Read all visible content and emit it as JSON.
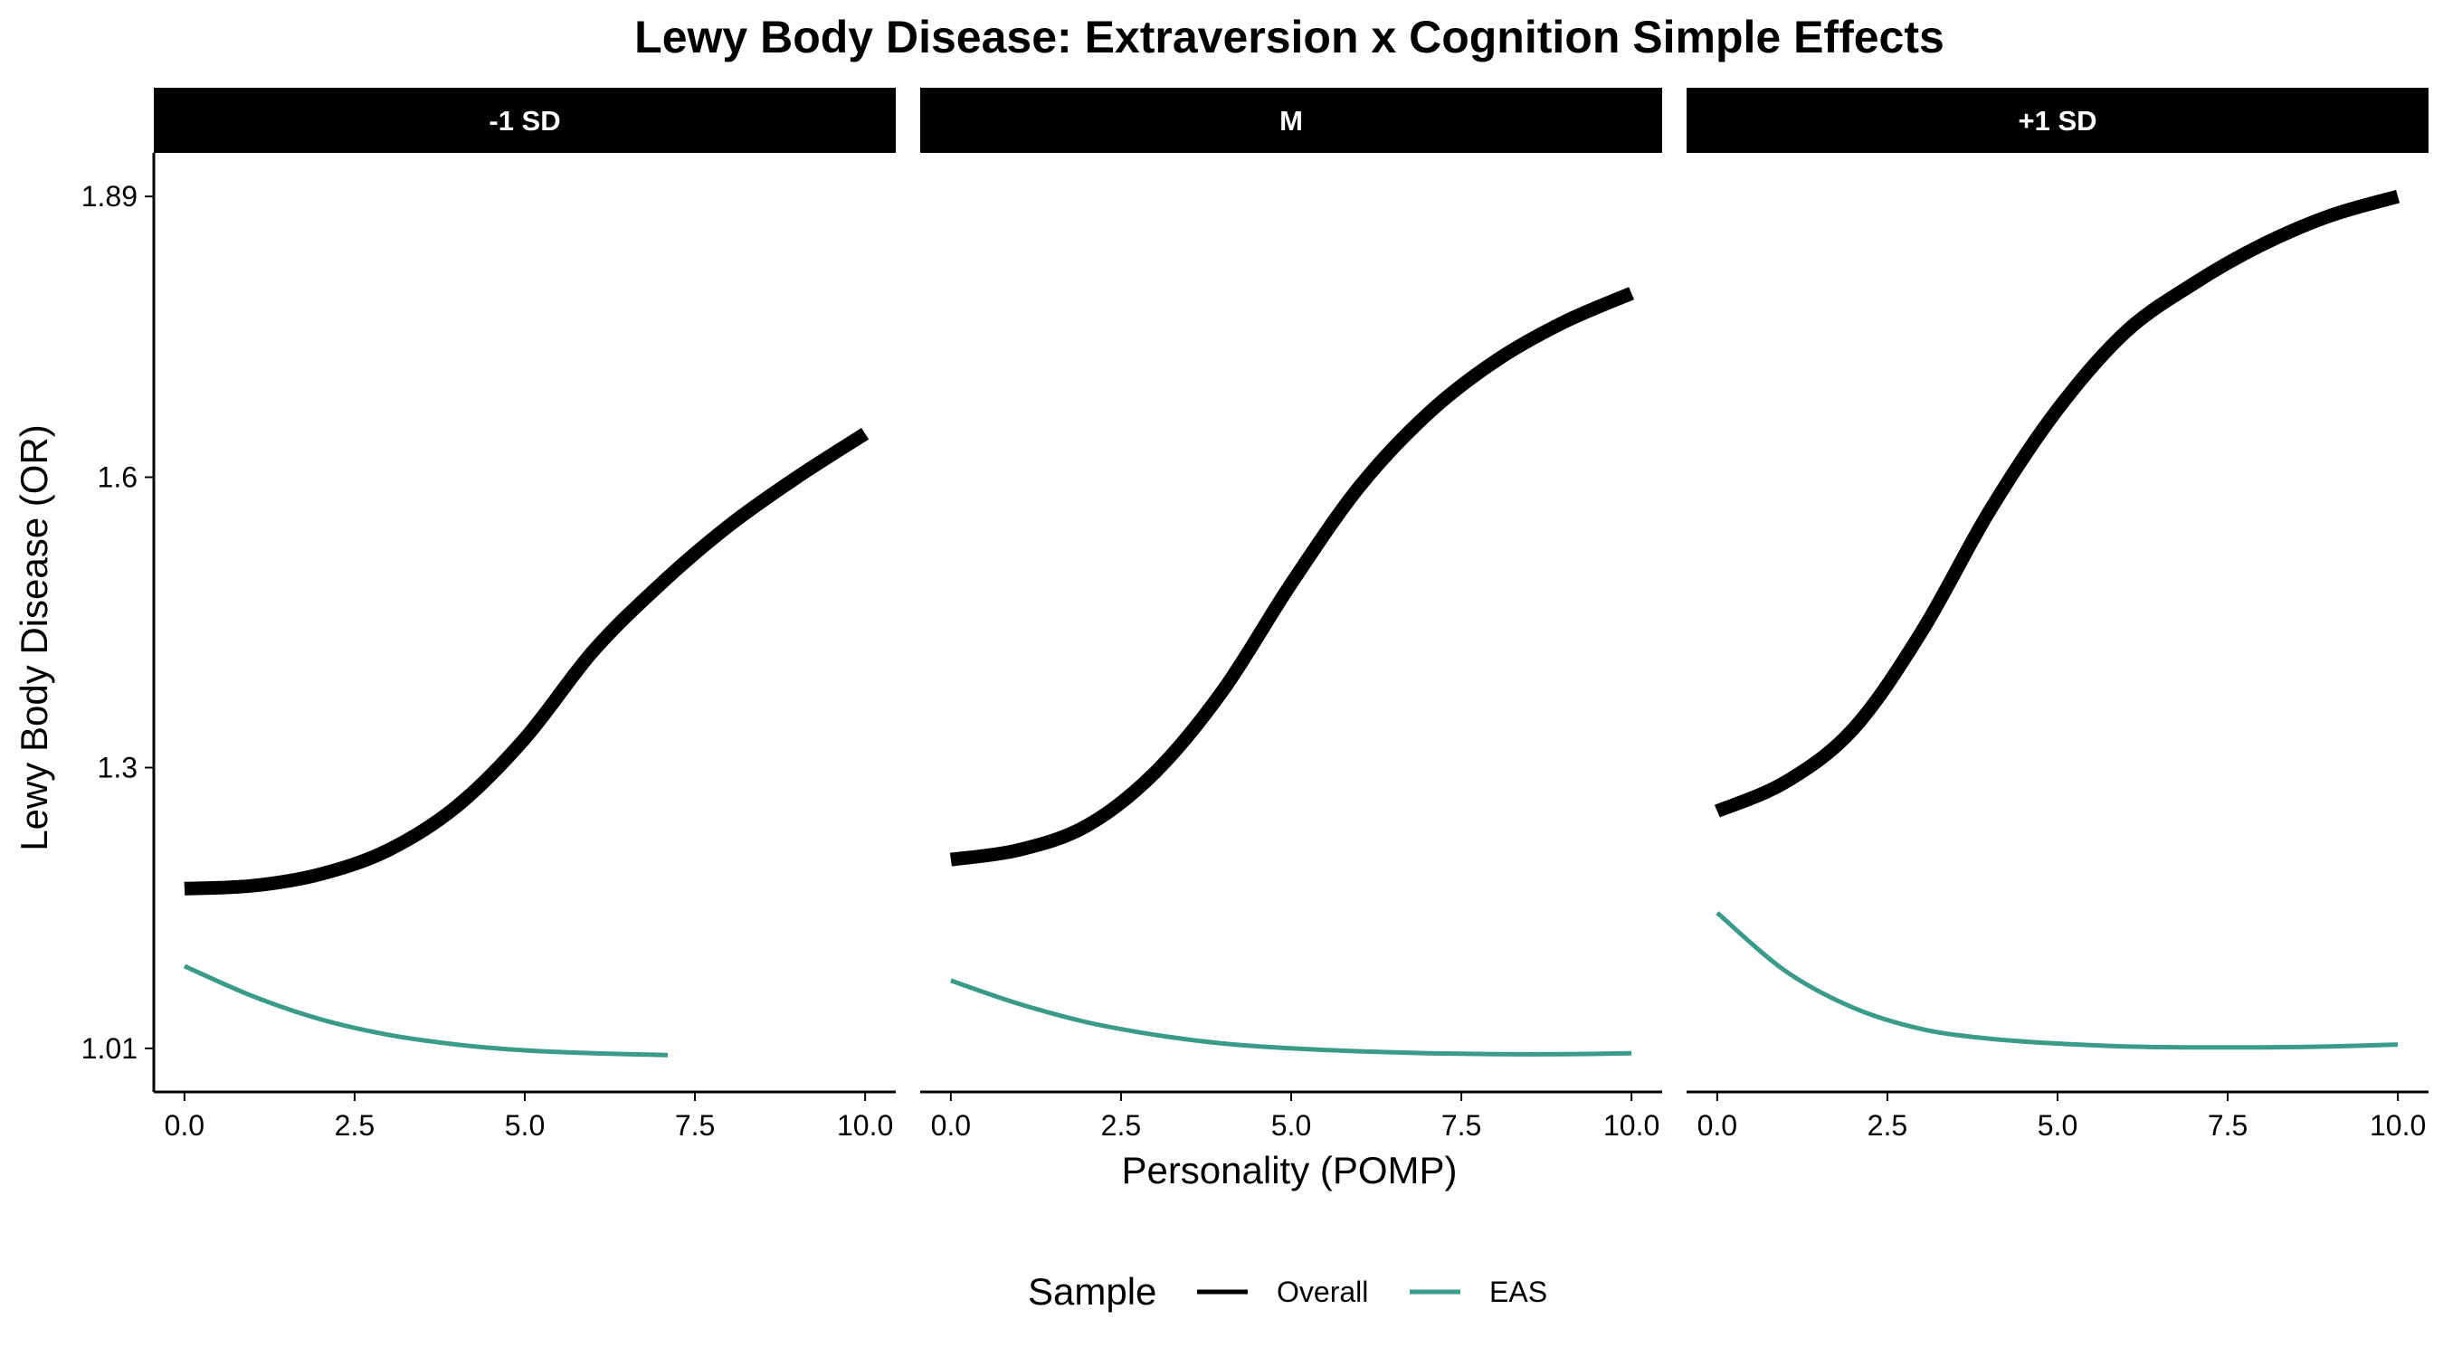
{
  "chart_data": {
    "type": "line",
    "title": "Lewy Body Disease: Extraversion x Cognition Simple Effects",
    "xlabel": "Personality (POMP)",
    "ylabel": "Lewy Body Disease (OR)",
    "xlim": [
      -0.45,
      10.45
    ],
    "ylim": [
      0.965,
      1.935
    ],
    "x_ticks": [
      0,
      2.5,
      5,
      7.5,
      10
    ],
    "x_tick_labels": [
      "0.0",
      "2.5",
      "5.0",
      "7.5",
      "10.0"
    ],
    "y_ticks": [
      1.01,
      1.3,
      1.6,
      1.89
    ],
    "y_tick_labels": [
      "1.01",
      "1.3",
      "1.6",
      "1.89"
    ],
    "grid": false,
    "legend": {
      "title": "Sample",
      "position": "bottom",
      "entries": [
        {
          "name": "Overall",
          "color": "#000000"
        },
        {
          "name": "EAS",
          "color": "#3a9b8a"
        }
      ]
    },
    "panels": [
      {
        "label": "-1 SD",
        "series": [
          {
            "name": "Overall",
            "color": "#000000",
            "x": [
              0,
              1,
              2,
              3,
              4,
              5,
              6,
              7,
              8,
              9,
              10
            ],
            "y": [
              1.175,
              1.178,
              1.19,
              1.215,
              1.26,
              1.33,
              1.42,
              1.49,
              1.55,
              1.6,
              1.645
            ]
          },
          {
            "name": "EAS",
            "color": "#3a9b8a",
            "x": [
              0,
              1,
              2,
              3,
              4,
              5,
              6,
              7.1
            ],
            "y": [
              1.095,
              1.064,
              1.04,
              1.024,
              1.014,
              1.008,
              1.005,
              1.003
            ]
          }
        ]
      },
      {
        "label": "M",
        "series": [
          {
            "name": "Overall",
            "color": "#000000",
            "x": [
              0,
              1,
              2,
              3,
              4,
              5,
              6,
              7,
              8,
              9,
              10
            ],
            "y": [
              1.205,
              1.215,
              1.24,
              1.295,
              1.38,
              1.49,
              1.59,
              1.665,
              1.72,
              1.76,
              1.79
            ]
          },
          {
            "name": "EAS",
            "color": "#3a9b8a",
            "x": [
              0,
              1,
              2,
              3,
              4,
              5,
              6,
              7,
              8,
              9,
              10
            ],
            "y": [
              1.08,
              1.056,
              1.037,
              1.024,
              1.015,
              1.01,
              1.007,
              1.005,
              1.004,
              1.004,
              1.005
            ]
          }
        ]
      },
      {
        "label": "+1 SD",
        "series": [
          {
            "name": "Overall",
            "color": "#000000",
            "x": [
              0,
              1,
              2,
              3,
              4,
              5,
              6,
              7,
              8,
              9,
              10
            ],
            "y": [
              1.255,
              1.285,
              1.34,
              1.44,
              1.565,
              1.67,
              1.75,
              1.8,
              1.84,
              1.87,
              1.89
            ]
          },
          {
            "name": "EAS",
            "color": "#3a9b8a",
            "x": [
              0,
              1,
              2,
              3,
              4,
              5,
              6,
              7,
              8,
              9,
              10
            ],
            "y": [
              1.15,
              1.09,
              1.052,
              1.03,
              1.02,
              1.015,
              1.012,
              1.011,
              1.011,
              1.012,
              1.014
            ]
          }
        ]
      }
    ]
  }
}
